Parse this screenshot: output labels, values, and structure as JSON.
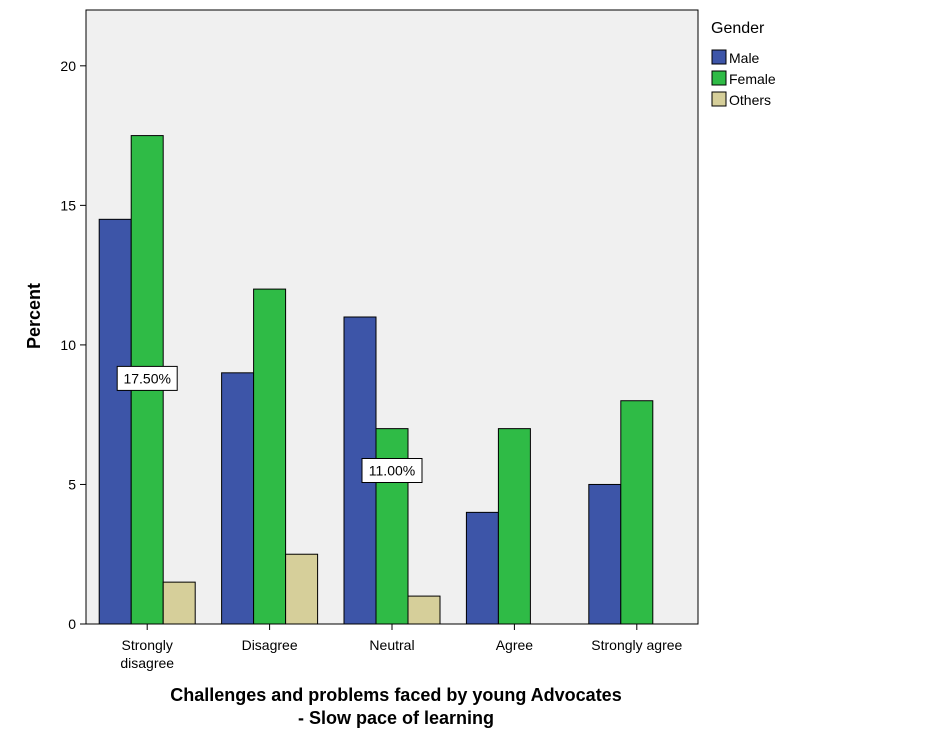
{
  "chart_data": {
    "type": "bar",
    "title": "",
    "xlabel_lines": [
      "Challenges and problems faced by young Advocates",
      "- Slow pace of learning"
    ],
    "ylabel": "Percent",
    "ylim": [
      0,
      22
    ],
    "yticks": [
      0,
      5,
      10,
      15,
      20
    ],
    "grid": false,
    "legend_title": "Gender",
    "legend_position": "right",
    "categories": [
      [
        "Strongly",
        "disagree"
      ],
      [
        "Disagree"
      ],
      [
        "Neutral"
      ],
      [
        "Agree"
      ],
      [
        "Strongly agree"
      ]
    ],
    "series": [
      {
        "name": "Male",
        "color": "#3d55a8",
        "values": [
          14.5,
          9.0,
          11.0,
          4.0,
          5.0
        ]
      },
      {
        "name": "Female",
        "color": "#2fbb46",
        "values": [
          17.5,
          12.0,
          7.0,
          7.0,
          8.0
        ]
      },
      {
        "name": "Others",
        "color": "#d6cf9a",
        "values": [
          1.5,
          2.5,
          1.0,
          0,
          0
        ]
      }
    ],
    "annotations": [
      {
        "text": "17.50%",
        "category_index": 0,
        "y": 8.8
      },
      {
        "text": "11.00%",
        "category_index": 2,
        "y": 5.5
      }
    ]
  }
}
